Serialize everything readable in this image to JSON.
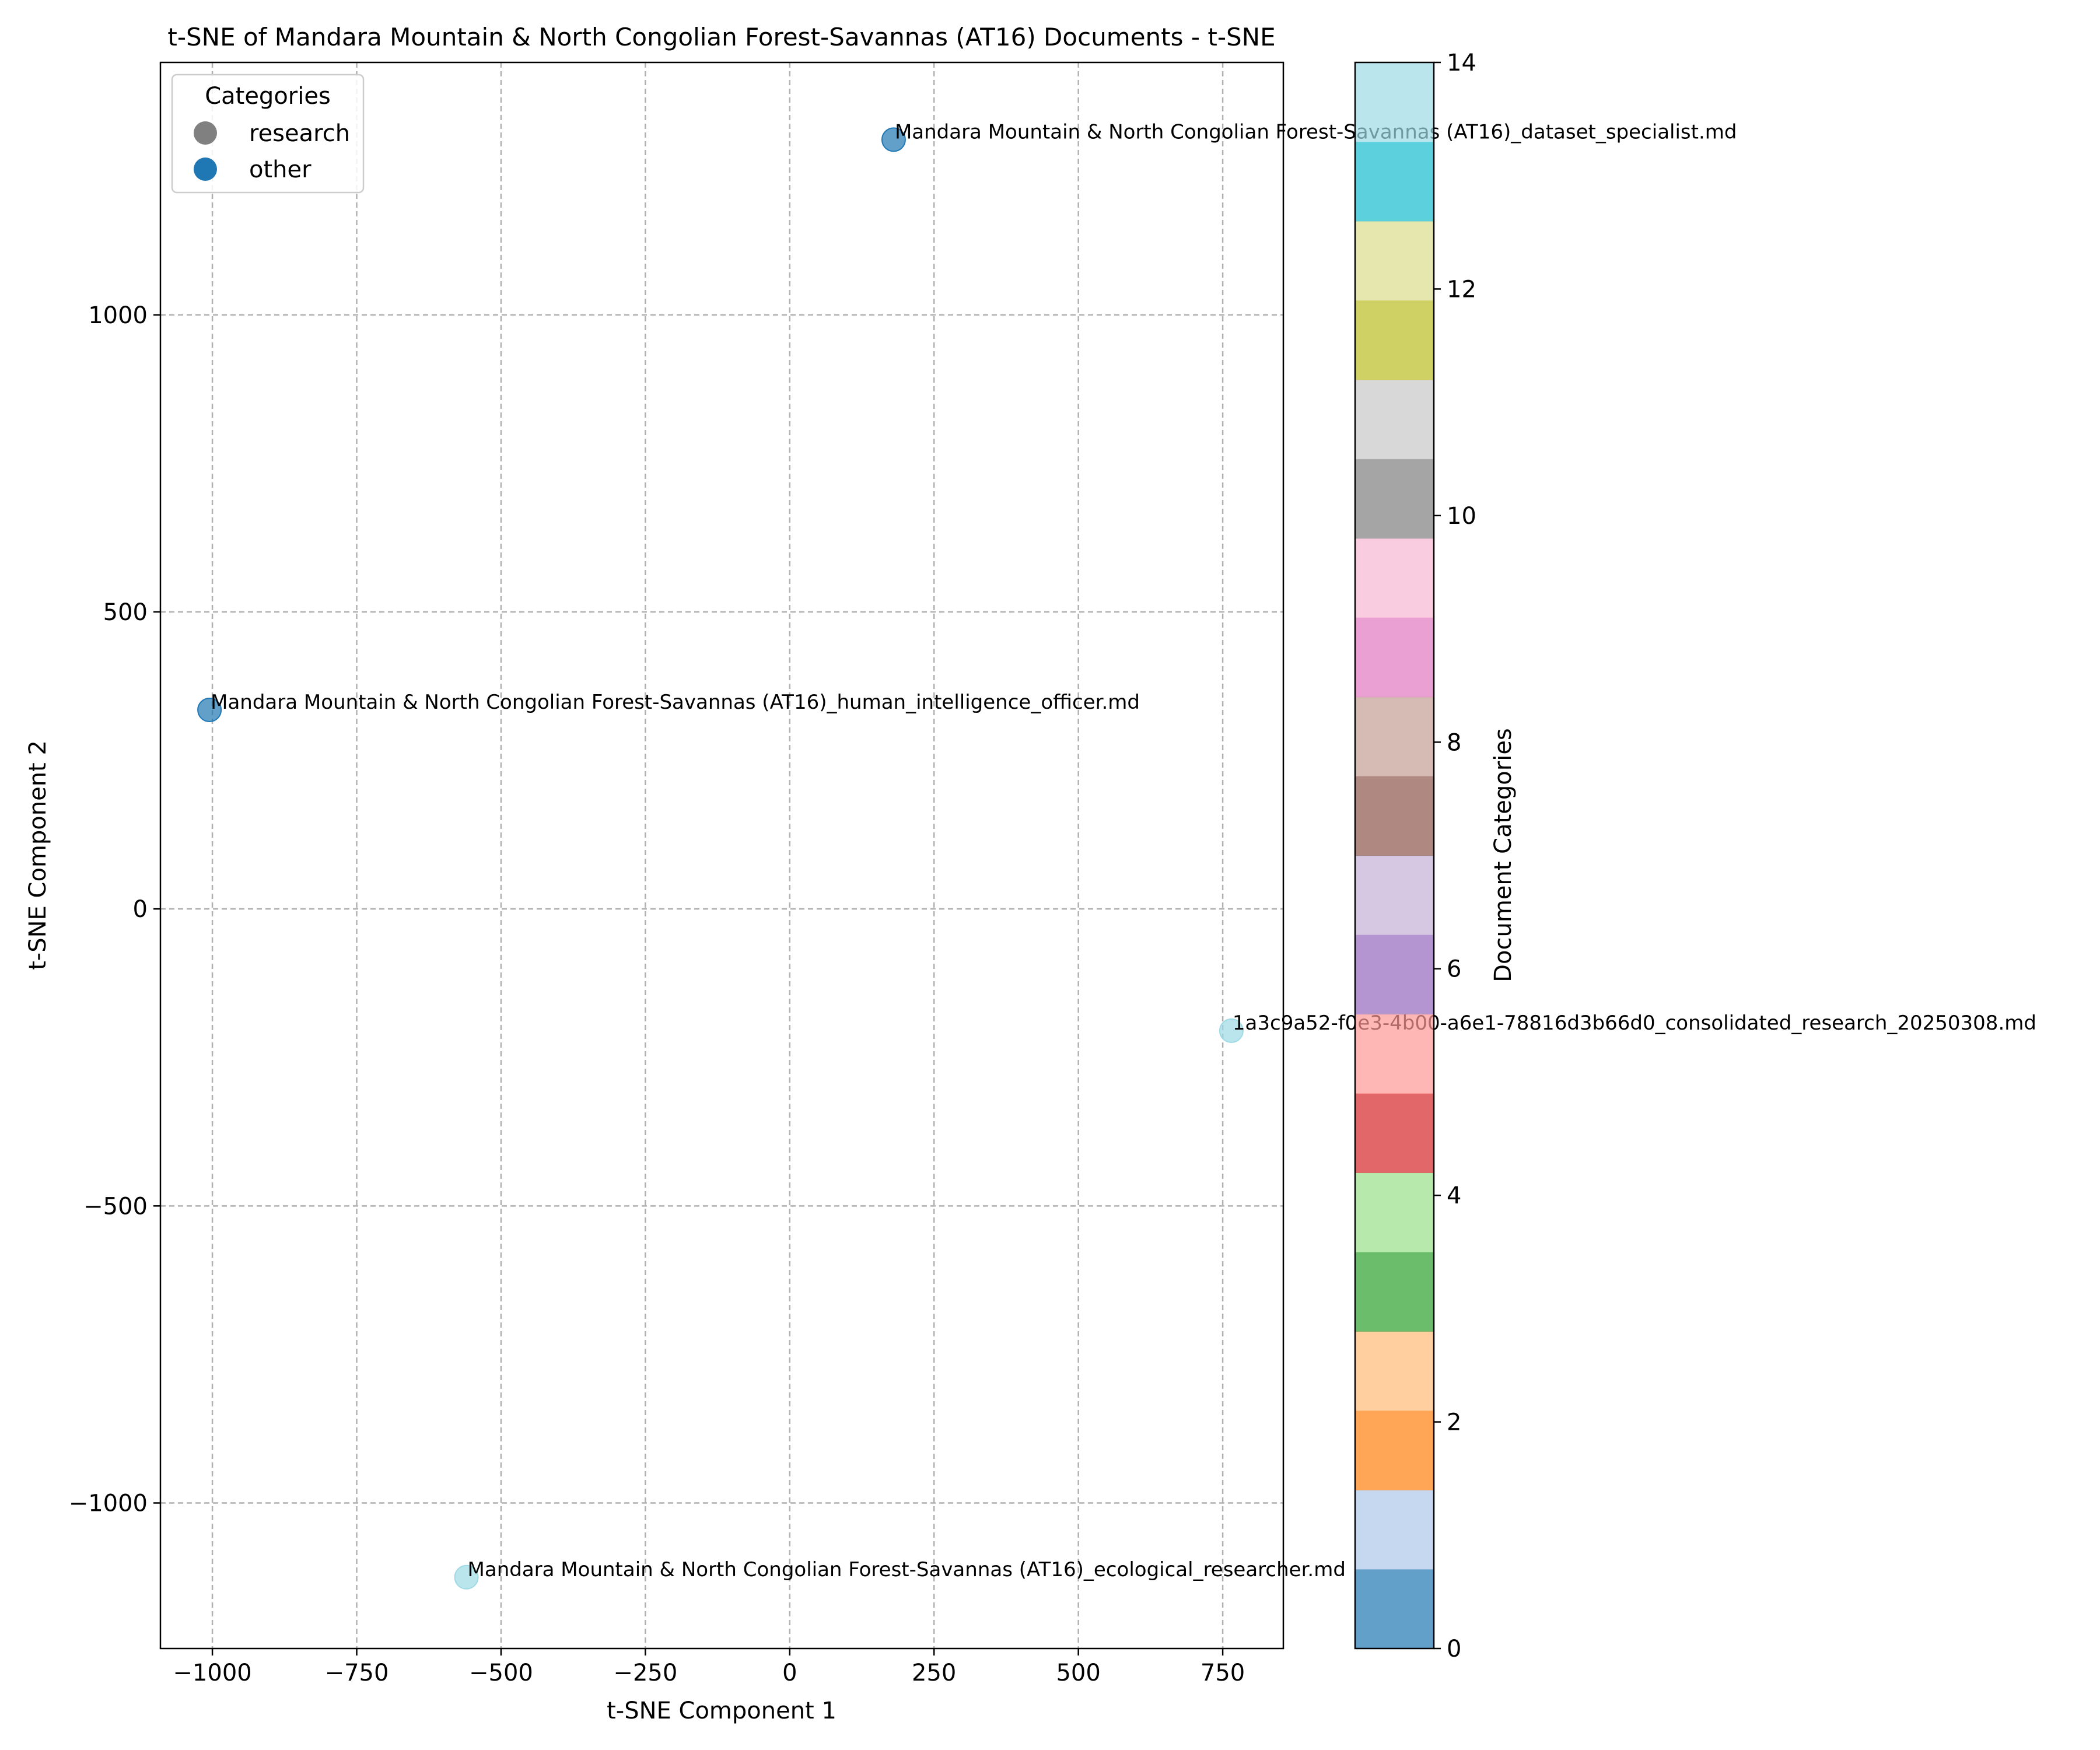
{
  "chart_data": {
    "type": "scatter",
    "title": "t-SNE of Mandara Mountain & North Congolian Forest-Savannas (AT16) Documents - t-SNE",
    "xlabel": "t-SNE Component 1",
    "ylabel": "t-SNE Component 2",
    "xlim": [
      -1090,
      855
    ],
    "ylim": [
      -1245,
      1425
    ],
    "xticks": [
      -1000,
      -750,
      -500,
      -250,
      0,
      250,
      500,
      750
    ],
    "xtick_labels": [
      "−1000",
      "−750",
      "−500",
      "−250",
      "0",
      "250",
      "500",
      "750"
    ],
    "yticks": [
      -1000,
      -500,
      0,
      500,
      1000
    ],
    "ytick_labels": [
      "−1000",
      "−500",
      "0",
      "500",
      "1000"
    ],
    "grid": true,
    "legend": {
      "title": "Categories",
      "placement": "top-left",
      "entries": [
        {
          "label": "research",
          "color": "#808080"
        },
        {
          "label": "other",
          "color": "#1f77b4"
        }
      ]
    },
    "points": [
      {
        "x": 180,
        "y": 1295,
        "category": 0,
        "color": "#1f77b4",
        "label": "Mandara Mountain & North Congolian Forest-Savannas (AT16)_dataset_specialist.md"
      },
      {
        "x": -1005,
        "y": 335,
        "category": 0,
        "color": "#1f77b4",
        "label": "Mandara Mountain & North Congolian Forest-Savannas (AT16)_human_intelligence_officer.md"
      },
      {
        "x": 765,
        "y": -205,
        "category": 14,
        "color": "#9edae5",
        "label": "1a3c9a52-f0e3-4b00-a6e1-78816d3b66d0_consolidated_research_20250308.md"
      },
      {
        "x": -560,
        "y": -1125,
        "category": 14,
        "color": "#9edae5",
        "label": "Mandara Mountain & North Congolian Forest-Savannas (AT16)_ecological_researcher.md"
      }
    ],
    "colorbar": {
      "label": "Document Categories",
      "range": [
        0,
        14
      ],
      "ticks": [
        0,
        2,
        4,
        6,
        8,
        10,
        12,
        14
      ],
      "tick_labels": [
        "0",
        "2",
        "4",
        "6",
        "8",
        "10",
        "12",
        "14"
      ],
      "colors": [
        "#1f77b4",
        "#aec7e8",
        "#ff7f0e",
        "#ffbb78",
        "#2ca02c",
        "#98df8a",
        "#d62728",
        "#ff9896",
        "#9467bd",
        "#c5b0d5",
        "#8c564b",
        "#c49c94",
        "#e377c2",
        "#f7b6d2",
        "#7f7f7f",
        "#c7c7c7",
        "#bcbd22",
        "#dbdb8d",
        "#17becf",
        "#9edae5"
      ]
    }
  }
}
